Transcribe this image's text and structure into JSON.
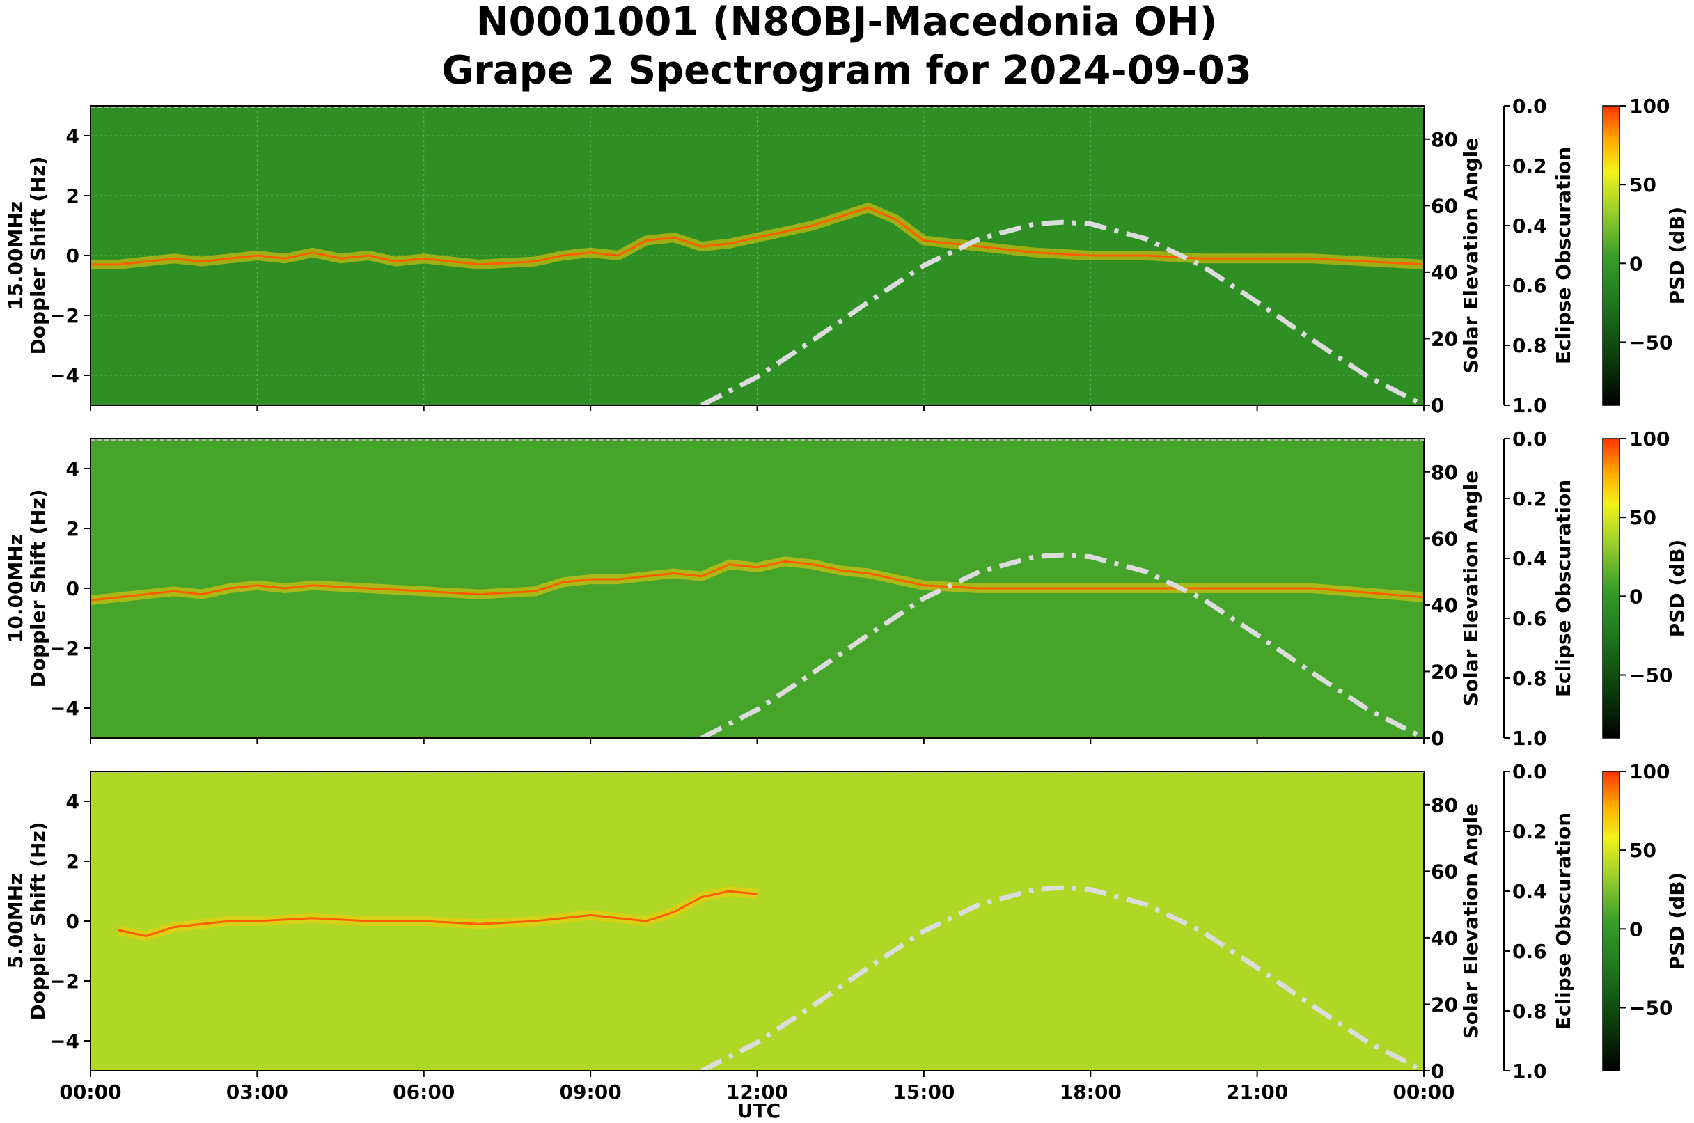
{
  "figure": {
    "title_line1": "N0001001 (N8OBJ-Macedonia OH)",
    "title_line2": "Grape 2 Spectrogram for 2024-09-03",
    "xlabel": "UTC"
  },
  "chart_data": [
    {
      "type": "heatmap",
      "panel": "15.00MHz",
      "ylabel_line1": "15.00MHz",
      "ylabel_line2": "Doppler Shift (Hz)",
      "x_ticks": [
        "00:00",
        "03:00",
        "06:00",
        "09:00",
        "12:00",
        "15:00",
        "18:00",
        "21:00",
        "00:00"
      ],
      "x_range_hours": [
        0,
        24
      ],
      "y_ticks": [
        -4,
        -2,
        0,
        2,
        4
      ],
      "ylim": [
        -5,
        5
      ],
      "grid": true,
      "background_level_db": -20,
      "trace": {
        "hours": [
          0,
          0.5,
          1,
          1.5,
          2,
          2.5,
          3,
          3.5,
          4,
          4.5,
          5,
          5.5,
          6,
          7,
          8,
          8.5,
          9,
          9.5,
          10,
          10.5,
          11,
          11.5,
          12,
          12.5,
          13,
          13.5,
          14,
          14.5,
          15,
          16,
          17,
          18,
          19,
          20,
          21,
          22,
          23,
          24
        ],
        "doppler_hz": [
          -0.3,
          -0.3,
          -0.2,
          -0.1,
          -0.2,
          -0.1,
          0.0,
          -0.1,
          0.1,
          -0.1,
          0.0,
          -0.2,
          -0.1,
          -0.3,
          -0.2,
          0.0,
          0.1,
          0.0,
          0.5,
          0.6,
          0.3,
          0.4,
          0.6,
          0.8,
          1.0,
          1.3,
          1.6,
          1.2,
          0.5,
          0.3,
          0.1,
          0.0,
          0.0,
          -0.1,
          -0.1,
          -0.1,
          -0.2,
          -0.3
        ]
      },
      "solar_elevation": {
        "axis_label": "Solar Elevation Angle",
        "ticks": [
          0,
          20,
          40,
          60,
          80
        ],
        "ylim": [
          0,
          90
        ],
        "hours": [
          11.0,
          12.0,
          13.0,
          14.0,
          15.0,
          16.0,
          17.0,
          17.5,
          18.0,
          19.0,
          20.0,
          21.0,
          22.0,
          23.0,
          24.0
        ],
        "degrees": [
          0,
          8.5,
          19.5,
          31,
          42,
          50,
          54.5,
          55,
          54.5,
          50,
          42,
          31,
          19.5,
          8.5,
          0
        ]
      },
      "eclipse_obscuration": {
        "axis_label": "Eclipse Obscuration",
        "ticks": [
          "0.0",
          "0.2",
          "0.4",
          "0.6",
          "0.8",
          "1.0"
        ]
      },
      "colorbar": {
        "label": "PSD (dB)",
        "ticks": [
          100,
          50,
          0,
          -50
        ],
        "range": [
          -90,
          100
        ]
      }
    },
    {
      "type": "heatmap",
      "panel": "10.00MHz",
      "ylabel_line1": "10.00MHz",
      "ylabel_line2": "Doppler Shift (Hz)",
      "x_ticks": [
        "00:00",
        "03:00",
        "06:00",
        "09:00",
        "12:00",
        "15:00",
        "18:00",
        "21:00",
        "00:00"
      ],
      "x_range_hours": [
        0,
        24
      ],
      "y_ticks": [
        -4,
        -2,
        0,
        2,
        4
      ],
      "ylim": [
        -5,
        5
      ],
      "grid": false,
      "background_level_db": -5,
      "trace": {
        "hours": [
          0,
          0.5,
          1,
          1.5,
          2,
          2.5,
          3,
          3.5,
          4,
          5,
          6,
          7,
          8,
          8.5,
          9,
          9.5,
          10,
          10.5,
          11,
          11.5,
          12,
          12.5,
          13,
          13.5,
          14,
          14.5,
          15,
          16,
          18,
          20,
          22,
          24
        ],
        "doppler_hz": [
          -0.4,
          -0.3,
          -0.2,
          -0.1,
          -0.2,
          0.0,
          0.1,
          0.0,
          0.1,
          0.0,
          -0.1,
          -0.2,
          -0.1,
          0.2,
          0.3,
          0.3,
          0.4,
          0.5,
          0.4,
          0.8,
          0.7,
          0.9,
          0.8,
          0.6,
          0.5,
          0.3,
          0.1,
          0.0,
          0.0,
          0.0,
          0.0,
          -0.3
        ]
      },
      "solar_elevation": {
        "axis_label": "Solar Elevation Angle",
        "ticks": [
          0,
          20,
          40,
          60,
          80
        ],
        "ylim": [
          0,
          90
        ],
        "hours": [
          11.0,
          12.0,
          13.0,
          14.0,
          15.0,
          16.0,
          17.0,
          17.5,
          18.0,
          19.0,
          20.0,
          21.0,
          22.0,
          23.0,
          24.0
        ],
        "degrees": [
          0,
          8.5,
          19.5,
          31,
          42,
          50,
          54.5,
          55,
          54.5,
          50,
          42,
          31,
          19.5,
          8.5,
          0
        ]
      },
      "eclipse_obscuration": {
        "axis_label": "Eclipse Obscuration",
        "ticks": [
          "0.0",
          "0.2",
          "0.4",
          "0.6",
          "0.8",
          "1.0"
        ]
      },
      "colorbar": {
        "label": "PSD (dB)",
        "ticks": [
          100,
          50,
          0,
          -50
        ],
        "range": [
          -90,
          100
        ]
      }
    },
    {
      "type": "heatmap",
      "panel": "5.00MHz",
      "ylabel_line1": "5.00MHz",
      "ylabel_line2": "Doppler Shift (Hz)",
      "x_ticks": [
        "00:00",
        "03:00",
        "06:00",
        "09:00",
        "12:00",
        "15:00",
        "18:00",
        "21:00",
        "00:00"
      ],
      "x_range_hours": [
        0,
        24
      ],
      "y_ticks": [
        -4,
        -2,
        0,
        2,
        4
      ],
      "ylim": [
        -5,
        5
      ],
      "grid": false,
      "background_level_db": 25,
      "trace": {
        "hours": [
          0.5,
          1,
          1.5,
          2,
          2.5,
          3,
          4,
          5,
          6,
          7,
          8,
          8.5,
          9,
          9.5,
          10,
          10.5,
          11,
          11.5,
          12
        ],
        "doppler_hz": [
          -0.3,
          -0.5,
          -0.2,
          -0.1,
          0.0,
          0.0,
          0.1,
          0.0,
          0.0,
          -0.1,
          0.0,
          0.1,
          0.2,
          0.1,
          0.0,
          0.3,
          0.8,
          1.0,
          0.9
        ]
      },
      "solar_elevation": {
        "axis_label": "Solar Elevation Angle",
        "ticks": [
          0,
          20,
          40,
          60,
          80
        ],
        "ylim": [
          0,
          90
        ],
        "hours": [
          11.0,
          12.0,
          13.0,
          14.0,
          15.0,
          16.0,
          17.0,
          17.5,
          18.0,
          19.0,
          20.0,
          21.0,
          22.0,
          23.0,
          24.0
        ],
        "degrees": [
          0,
          8.5,
          19.5,
          31,
          42,
          50,
          54.5,
          55,
          54.5,
          50,
          42,
          31,
          19.5,
          8.5,
          0
        ]
      },
      "eclipse_obscuration": {
        "axis_label": "Eclipse Obscuration",
        "ticks": [
          "0.0",
          "0.2",
          "0.4",
          "0.6",
          "0.8",
          "1.0"
        ]
      },
      "colorbar": {
        "label": "PSD (dB)",
        "ticks": [
          100,
          50,
          0,
          -50
        ],
        "range": [
          -90,
          100
        ]
      }
    }
  ],
  "colors": {
    "colormap": [
      "#000000",
      "#0b3a0b",
      "#1f7a1f",
      "#3a9e2a",
      "#9ccf2a",
      "#f2f21a",
      "#ffb000",
      "#ff3300"
    ],
    "solar_curve": "#dcdcdc"
  }
}
